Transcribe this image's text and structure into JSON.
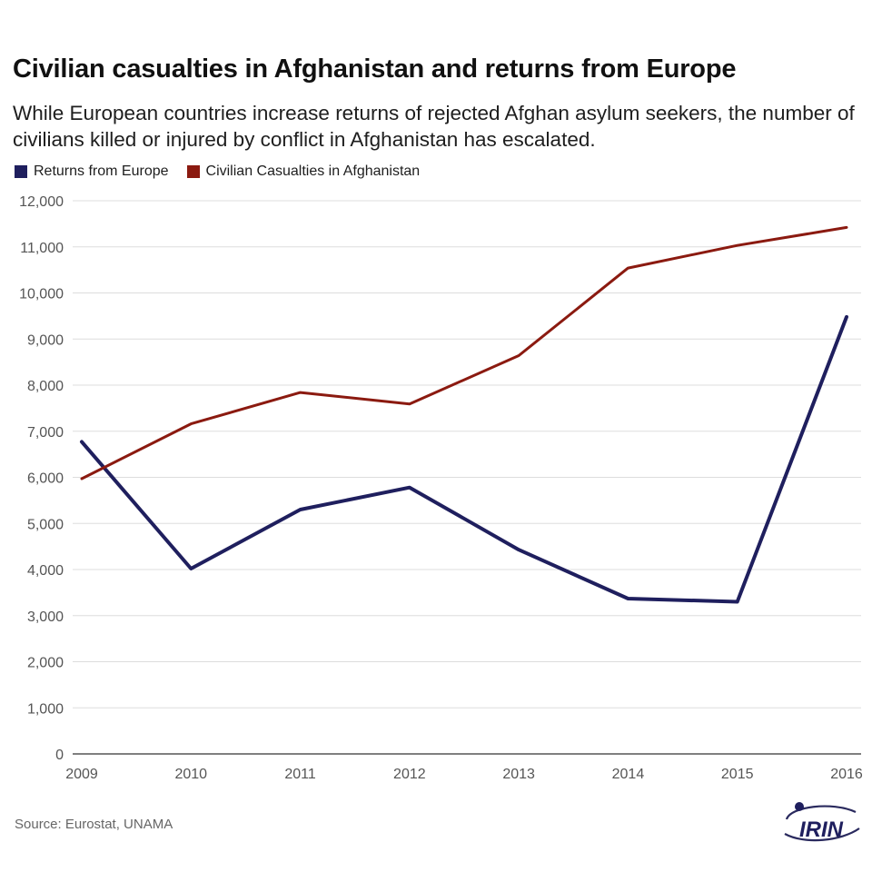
{
  "title": "Civilian casualties in Afghanistan and returns from Europe",
  "subtitle": "While European countries increase returns of rejected Afghan asylum seekers, the number of civilians killed or injured by conflict in Afghanistan has escalated.",
  "source": "Source: Eurostat, UNAMA",
  "logo_text": "IRIN",
  "colors": {
    "returns": "#1f1f5e",
    "casualties": "#8b1a10",
    "grid": "#dddddd",
    "axis": "#555555"
  },
  "chart_data": {
    "type": "line",
    "x": [
      "2009",
      "2010",
      "2011",
      "2012",
      "2013",
      "2014",
      "2015",
      "2016"
    ],
    "y_ticks": [
      "0",
      "1,000",
      "2,000",
      "3,000",
      "4,000",
      "5,000",
      "6,000",
      "7,000",
      "8,000",
      "9,000",
      "10,000",
      "11,000",
      "12,000"
    ],
    "ylim": [
      0,
      12000
    ],
    "grid": true,
    "legend_position": "top-left",
    "series": [
      {
        "name": "Returns from Europe",
        "values": [
          6770,
          4020,
          5300,
          5780,
          4430,
          3370,
          3300,
          9480
        ]
      },
      {
        "name": "Civilian Casualties in Afghanistan",
        "values": [
          5970,
          7160,
          7840,
          7590,
          8640,
          10540,
          11030,
          11420
        ]
      }
    ]
  }
}
